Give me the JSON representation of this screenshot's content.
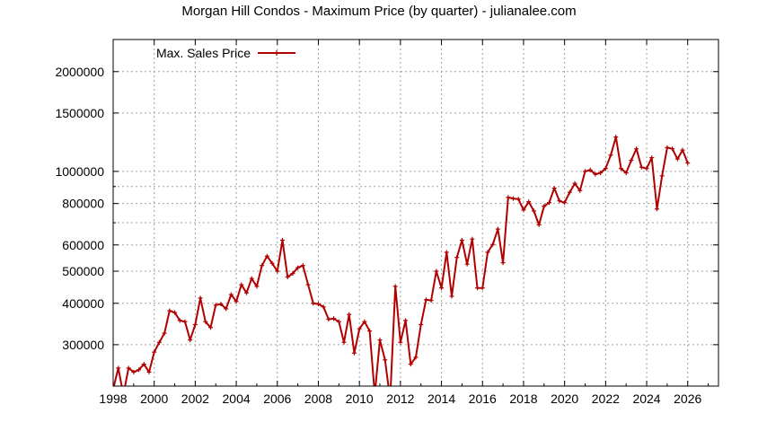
{
  "chart_data": {
    "type": "line",
    "title": "Morgan Hill Condos - Maximum Price (by quarter) - julianalee.com",
    "xlabel": "",
    "ylabel": "",
    "y_scale": "log",
    "xlim": [
      1998,
      2027.5
    ],
    "ylim": [
      225000,
      2500000
    ],
    "grid": true,
    "legend_position": "top-left",
    "line_color": "#b00000",
    "x_ticks": [
      1998,
      2000,
      2002,
      2004,
      2006,
      2008,
      2010,
      2012,
      2014,
      2016,
      2018,
      2020,
      2022,
      2024,
      2026
    ],
    "x_tick_labels": [
      "1998",
      "2000",
      "2002",
      "2004",
      "2006",
      "2008",
      "2010",
      "2012",
      "2014",
      "2016",
      "2018",
      "2020",
      "2022",
      "2024",
      "2026"
    ],
    "y_ticks": [
      300000,
      400000,
      500000,
      600000,
      800000,
      1000000,
      1500000,
      2000000
    ],
    "y_tick_labels": [
      "300000",
      "400000",
      "500000",
      "600000",
      "800000",
      "1000000",
      "1500000",
      "2000000"
    ],
    "series": [
      {
        "name": "Max. Sales Price",
        "x": [
          1998.0,
          1998.25,
          1998.5,
          1998.75,
          1999.0,
          1999.25,
          1999.5,
          1999.75,
          2000.0,
          2000.25,
          2000.5,
          2000.75,
          2001.0,
          2001.25,
          2001.5,
          2001.75,
          2002.0,
          2002.25,
          2002.5,
          2002.75,
          2003.0,
          2003.25,
          2003.5,
          2003.75,
          2004.0,
          2004.25,
          2004.5,
          2004.75,
          2005.0,
          2005.25,
          2005.5,
          2005.75,
          2006.0,
          2006.25,
          2006.5,
          2006.75,
          2007.0,
          2007.25,
          2007.5,
          2007.75,
          2008.0,
          2008.25,
          2008.5,
          2008.75,
          2009.0,
          2009.25,
          2009.5,
          2009.75,
          2010.0,
          2010.25,
          2010.5,
          2010.75,
          2011.0,
          2011.25,
          2011.5,
          2011.75,
          2012.0,
          2012.25,
          2012.5,
          2012.75,
          2013.0,
          2013.25,
          2013.5,
          2013.75,
          2014.0,
          2014.25,
          2014.5,
          2014.75,
          2015.0,
          2015.25,
          2015.5,
          2015.75,
          2016.0,
          2016.25,
          2016.5,
          2016.75,
          2017.0,
          2017.25,
          2017.5,
          2017.75,
          2018.0,
          2018.25,
          2018.5,
          2018.75,
          2019.0,
          2019.25,
          2019.5,
          2019.75,
          2020.0,
          2020.25,
          2020.5,
          2020.75,
          2021.0,
          2021.25,
          2021.5,
          2021.75,
          2022.0,
          2022.25,
          2022.5,
          2022.75,
          2023.0,
          2023.25,
          2023.5,
          2023.75,
          2024.0,
          2024.25,
          2024.5,
          2024.75,
          2025.0,
          2025.25,
          2025.5,
          2025.75,
          2026.0
        ],
        "values": [
          220000,
          255000,
          212000,
          255000,
          248000,
          252000,
          262000,
          248000,
          285000,
          305000,
          325000,
          380000,
          375000,
          355000,
          352000,
          310000,
          345000,
          415000,
          352000,
          338000,
          395000,
          398000,
          385000,
          425000,
          405000,
          455000,
          430000,
          475000,
          450000,
          520000,
          555000,
          528000,
          500000,
          620000,
          480000,
          492000,
          512000,
          520000,
          455000,
          400000,
          398000,
          390000,
          358000,
          360000,
          352000,
          305000,
          370000,
          283000,
          335000,
          352000,
          330000,
          212000,
          310000,
          270000,
          205000,
          450000,
          305000,
          355000,
          262000,
          275000,
          345000,
          410000,
          408000,
          500000,
          445000,
          570000,
          420000,
          550000,
          620000,
          525000,
          625000,
          445000,
          445000,
          570000,
          602000,
          670000,
          530000,
          835000,
          828000,
          825000,
          765000,
          810000,
          760000,
          690000,
          785000,
          805000,
          890000,
          815000,
          805000,
          865000,
          920000,
          875000,
          1000000,
          1010000,
          980000,
          990000,
          1020000,
          1120000,
          1270000,
          1020000,
          990000,
          1080000,
          1170000,
          1030000,
          1020000,
          1100000,
          770000,
          970000,
          1180000,
          1170000,
          1090000,
          1160000,
          1060000
        ]
      }
    ]
  }
}
